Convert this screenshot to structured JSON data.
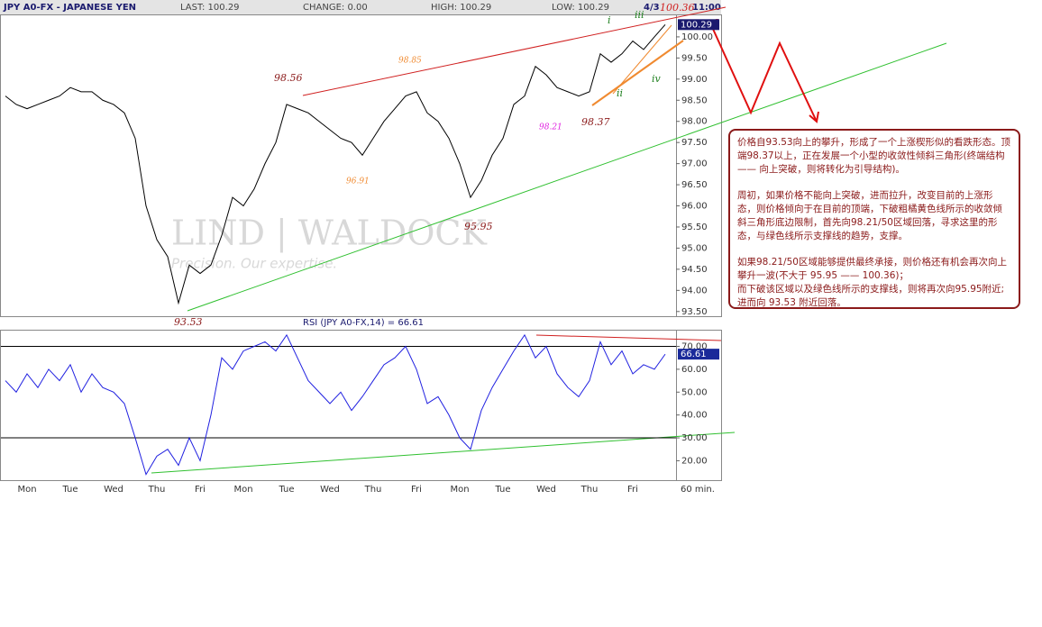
{
  "header": {
    "title": "JPY A0-FX - JAPANESE YEN",
    "last": "LAST: 100.29",
    "change": "CHANGE: 0.00",
    "high": "HIGH: 100.29",
    "low": "LOW: 100.29",
    "date": "4/3",
    "time": "11:00"
  },
  "watermark": {
    "brand": "LIND | WALDOCK",
    "tagline": "Precision. Our expertise."
  },
  "chart_data": [
    {
      "type": "line",
      "color": "#000000",
      "values": [
        98.6,
        98.4,
        98.3,
        98.4,
        98.5,
        98.6,
        98.8,
        98.7,
        98.7,
        98.5,
        98.4,
        98.2,
        97.6,
        96.0,
        95.2,
        94.8,
        93.7,
        94.6,
        94.4,
        94.6,
        95.3,
        96.2,
        96.0,
        96.4,
        97.0,
        97.5,
        98.4,
        98.3,
        98.2,
        98.0,
        97.8,
        97.6,
        97.5,
        97.2,
        97.6,
        98.0,
        98.3,
        98.6,
        98.7,
        98.2,
        98.0,
        97.6,
        97.0,
        96.2,
        96.6,
        97.2,
        97.6,
        98.4,
        98.6,
        99.3,
        99.1,
        98.8,
        98.7,
        98.6,
        98.7,
        99.6,
        99.4,
        99.6,
        99.9,
        99.7,
        100.0,
        100.29
      ],
      "ylim": [
        93.41,
        100.51
      ],
      "yticks": [
        {
          "value": 93.5,
          "label": "93.50"
        },
        {
          "value": 94,
          "label": "94.00"
        },
        {
          "value": 94.5,
          "label": "94.50"
        },
        {
          "value": 95,
          "label": "95.00"
        },
        {
          "value": 95.5,
          "label": "95.50"
        },
        {
          "value": 96,
          "label": "96.00"
        },
        {
          "value": 96.5,
          "label": "96.50"
        },
        {
          "value": 97,
          "label": "97.00"
        },
        {
          "value": 97.5,
          "label": "97.50"
        },
        {
          "value": 98,
          "label": "98.00"
        },
        {
          "value": 98.5,
          "label": "98.50"
        },
        {
          "value": 99,
          "label": "99.00"
        },
        {
          "value": 99.5,
          "label": "99.50"
        },
        {
          "value": 100,
          "label": "100.00"
        }
      ],
      "annotations": [
        "98.56",
        "98.85",
        "96.91",
        "95.95",
        "98.21",
        "98.37",
        "93.53",
        "i",
        "ii",
        "iii",
        "iv",
        "100.36",
        "?"
      ]
    },
    {
      "type": "line",
      "color": "#2020e0",
      "title": "RSI (JPY A0-FX,14) = 66.61",
      "x_label": "60 min.",
      "categories": [
        null,
        null,
        "Mon",
        null,
        null,
        null,
        "Tue",
        null,
        null,
        null,
        "Wed",
        null,
        null,
        null,
        "Thu",
        null,
        null,
        null,
        "Fri",
        null,
        null,
        null,
        "Mon",
        null,
        null,
        null,
        "Tue",
        null,
        null,
        null,
        "Wed",
        null,
        null,
        null,
        "Thu",
        null,
        null,
        null,
        "Fri",
        null,
        null,
        null,
        "Mon",
        null,
        null,
        null,
        "Tue",
        null,
        null,
        null,
        "Wed",
        null,
        null,
        null,
        "Thu",
        null,
        null,
        null,
        "Fri",
        null,
        null,
        null
      ],
      "values": [
        55,
        50,
        58,
        52,
        60,
        55,
        62,
        50,
        58,
        52,
        50,
        45,
        30,
        14,
        22,
        25,
        18,
        30,
        20,
        40,
        65,
        60,
        68,
        70,
        72,
        68,
        75,
        65,
        55,
        50,
        45,
        50,
        42,
        48,
        55,
        62,
        65,
        70,
        60,
        45,
        48,
        40,
        30,
        25,
        42,
        52,
        60,
        68,
        75,
        65,
        70,
        58,
        52,
        48,
        55,
        72,
        62,
        68,
        58,
        62,
        60,
        66.61
      ],
      "ylim": [
        11.5,
        76.9
      ],
      "yticks": [
        {
          "value": 20,
          "label": "20.00"
        },
        {
          "value": 30,
          "label": "30.00"
        },
        {
          "value": 40,
          "label": "40.00"
        },
        {
          "value": 50,
          "label": "50.00"
        },
        {
          "value": 60,
          "label": "60.00"
        },
        {
          "value": 70,
          "label": "70.00"
        }
      ]
    }
  ],
  "note": {
    "paragraphs": [
      "价格自93.53向上的攀升，形成了一个上涨楔形似的看跌形态。顶端98.37以上，正在发展一个小型的收敛性倾斜三角形(终端结构 —— 向上突破，则将转化为引导结构)。",
      "周初，如果价格不能向上突破，进而拉升，改变目前的上涨形态，则价格倾向于在目前的顶端，下破粗橘黄色线所示的收敛倾斜三角形底边限制，首先向98.21/50区域回落，寻求这里的形态，与绿色线所示支撑线的趋势，支撑。",
      "如果98.21/50区域能够提供最终承接，则价格还有机会再次向上攀升一波(不大于 95.95 —— 100.36)；",
      "而下破该区域以及绿色线所示的支撑线，则将再次向95.95附近;进而向 93.53 附近回落。"
    ]
  }
}
